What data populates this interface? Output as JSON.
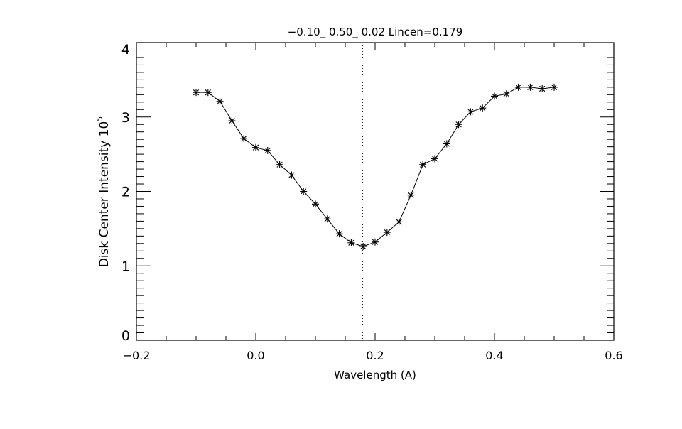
{
  "chart_data": {
    "type": "line",
    "title": "−0.10_ 0.50_ 0.02   Lincen=0.179",
    "xlabel": "Wavelength (A)",
    "ylabel": "Disk Center Intensity 10",
    "ylabel_exponent": "5",
    "xlim": [
      -0.2,
      0.6
    ],
    "ylim": [
      0,
      4
    ],
    "xticks": [
      -0.2,
      0.0,
      0.2,
      0.4,
      0.6
    ],
    "xtick_labels": [
      "−0.2",
      "0.0",
      "0.2",
      "0.4",
      "0.6"
    ],
    "yticks": [
      0,
      1,
      2,
      3,
      4
    ],
    "ytick_labels": [
      "0",
      "1",
      "2",
      "3",
      "4"
    ],
    "grid": false,
    "marker": "asterisk",
    "vline": {
      "x": 0.179,
      "style": "dotted"
    },
    "x": [
      -0.1,
      -0.08,
      -0.06,
      -0.04,
      -0.02,
      0.0,
      0.02,
      0.04,
      0.06,
      0.08,
      0.1,
      0.12,
      0.14,
      0.16,
      0.18,
      0.2,
      0.22,
      0.24,
      0.26,
      0.28,
      0.3,
      0.32,
      0.34,
      0.36,
      0.38,
      0.4,
      0.42,
      0.44,
      0.46,
      0.48,
      0.5
    ],
    "y": [
      3.33,
      3.33,
      3.21,
      2.95,
      2.71,
      2.59,
      2.55,
      2.36,
      2.22,
      2.0,
      1.83,
      1.63,
      1.43,
      1.31,
      1.26,
      1.32,
      1.45,
      1.59,
      1.95,
      2.36,
      2.44,
      2.64,
      2.9,
      3.07,
      3.12,
      3.28,
      3.31,
      3.4,
      3.4,
      3.38,
      3.4
    ]
  }
}
